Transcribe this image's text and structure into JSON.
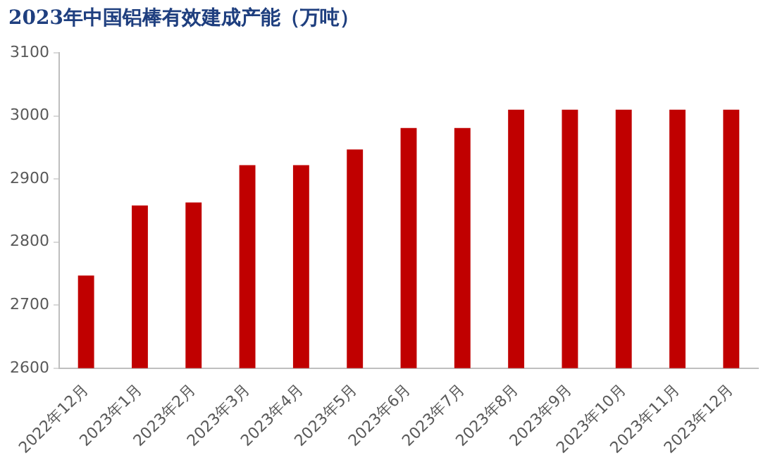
{
  "chart_data": {
    "type": "bar",
    "title": "2023年中国铝棒有效建成产能（万吨）",
    "categories": [
      "2022年12月",
      "2023年1月",
      "2023年2月",
      "2023年3月",
      "2023年4月",
      "2023年5月",
      "2023年6月",
      "2023年7月",
      "2023年8月",
      "2023年9月",
      "2023年10月",
      "2023年11月",
      "2023年12月"
    ],
    "values": [
      2747,
      2858,
      2863,
      2922,
      2922,
      2947,
      2981,
      2981,
      3010,
      3010,
      3010,
      3010,
      3010
    ],
    "color": "#c00000",
    "ylim": [
      2600,
      3100
    ],
    "yticks": [
      2600,
      2700,
      2800,
      2900,
      3000,
      3100
    ],
    "grid": false,
    "legend": false
  }
}
